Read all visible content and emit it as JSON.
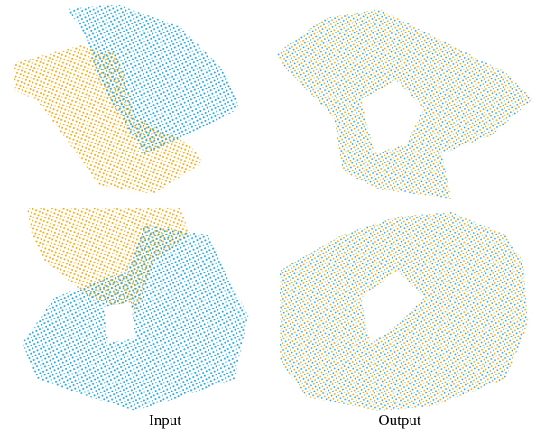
{
  "captions": [
    "Input",
    "Output"
  ]
}
